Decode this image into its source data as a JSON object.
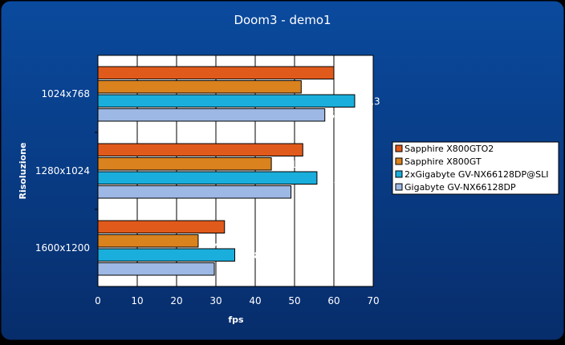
{
  "chart_data": {
    "type": "bar",
    "orientation": "horizontal",
    "title": "Doom3 - demo1",
    "xlabel": "fps",
    "ylabel": "Risoluzione",
    "xlim": [
      0,
      70
    ],
    "xticks": [
      0,
      10,
      20,
      30,
      40,
      50,
      60,
      70
    ],
    "grid": true,
    "legend_position": "right",
    "categories": [
      "1024x768",
      "1280x1024",
      "1600x1200"
    ],
    "series": [
      {
        "name": "Sapphire X800GTO2",
        "color": "#e05a1c",
        "values": [
          60,
          52.1,
          32.2
        ],
        "labels": [
          "60",
          "52,1",
          "32,2"
        ]
      },
      {
        "name": "Sapphire X800GT",
        "color": "#d9821e",
        "values": [
          51.7,
          44.1,
          25.5
        ],
        "labels": [
          "51,7",
          "44,1",
          "25,5"
        ]
      },
      {
        "name": "2xGigabyte GV-NX66128DP@SLI",
        "color": "#1aaedc",
        "values": [
          65.3,
          55.7,
          34.8
        ],
        "labels": [
          "65,3",
          "55,7",
          "34,8"
        ]
      },
      {
        "name": "Gigabyte GV-NX66128DP",
        "color": "#9db8e4",
        "values": [
          57.7,
          49.1,
          29.6
        ],
        "labels": [
          "57,7",
          "49,1",
          "29,6"
        ]
      }
    ]
  }
}
